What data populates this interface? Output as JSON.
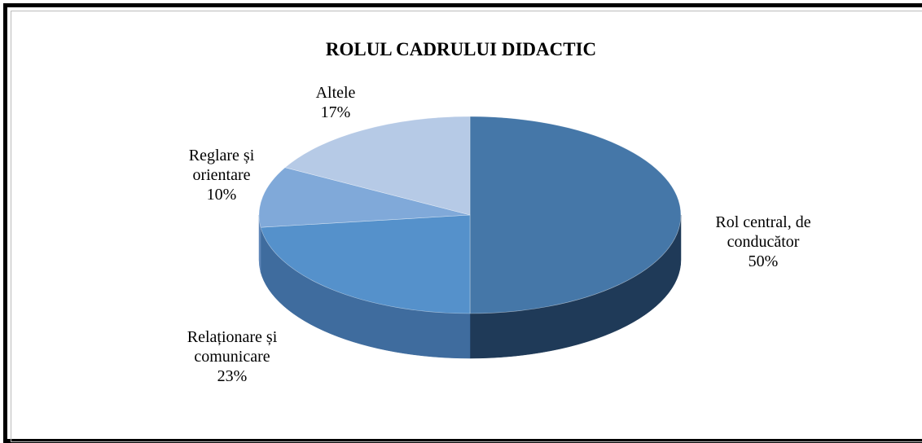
{
  "chart_data": {
    "type": "pie",
    "title": "ROLUL CADRULUI DIDACTIC",
    "categories": [
      "Rol central, de conducător",
      "Relaționare și comunicare",
      "Reglare și orientare",
      "Altele"
    ],
    "values": [
      50,
      23,
      10,
      17
    ],
    "value_labels": [
      "50%",
      "23%",
      "10%",
      "17%"
    ],
    "colors": [
      "#4577a8",
      "#5591cb",
      "#80a9d9",
      "#b6cae6"
    ],
    "side_colors": [
      "#1f3a58",
      "#3f6c9e",
      "#5e86b8",
      "#8ea8cc"
    ]
  }
}
